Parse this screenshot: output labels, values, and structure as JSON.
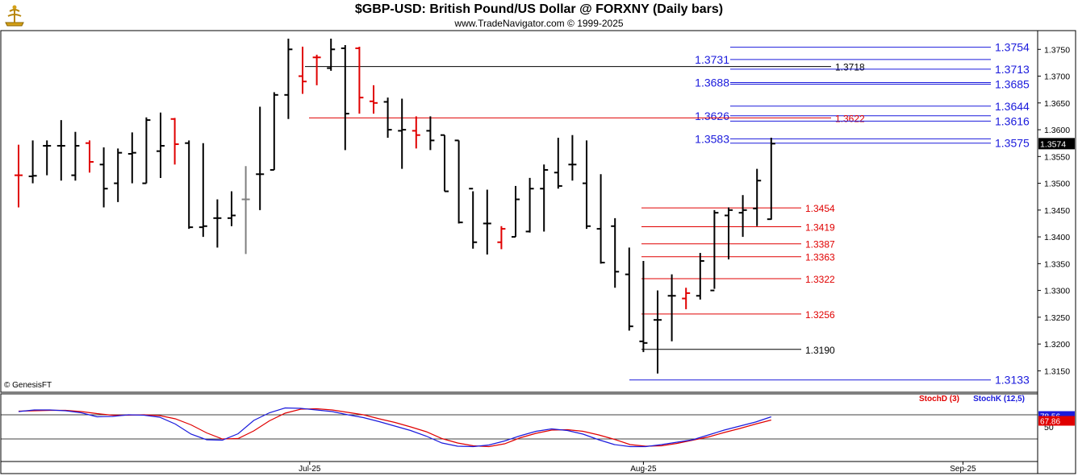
{
  "header": {
    "title": "$GBP-USD:  British Pound/US Dollar @ FORXNY  (Daily bars)",
    "subtitle": "www.TradeNavigator.com © 1999-2025",
    "copyright": "© GenesisFT"
  },
  "colors": {
    "up_bar": "#000000",
    "down_bar": "#e00000",
    "neutral_bar": "#808080",
    "blue_level": "#1a1adc",
    "red_level": "#e00000",
    "black_level": "#000000",
    "stoch_d": "#e00000",
    "stoch_k": "#1a1adc"
  },
  "chart_data": [
    {
      "type": "ohlc",
      "title": "$GBP-USD:  British Pound/US Dollar @ FORXNY  (Daily bars)",
      "ylim": [
        1.311,
        1.3785
      ],
      "y_ticks": [
        "1.3750",
        "1.3700",
        "1.3650",
        "1.3600",
        "1.3550",
        "1.3500",
        "1.3450",
        "1.3400",
        "1.3350",
        "1.3300",
        "1.3250",
        "1.3200",
        "1.3150"
      ],
      "x_ticks": [
        "Jul-25",
        "Aug-25",
        "Sep-25"
      ],
      "last_price": "1.3574",
      "bars": [
        {
          "o": 1.3515,
          "h": 1.3572,
          "l": 1.3455,
          "c": 1.3515,
          "col": "down"
        },
        {
          "o": 1.3513,
          "h": 1.358,
          "l": 1.35,
          "c": 1.3514,
          "col": "up"
        },
        {
          "o": 1.357,
          "h": 1.358,
          "l": 1.3515,
          "c": 1.357,
          "col": "up"
        },
        {
          "o": 1.357,
          "h": 1.3618,
          "l": 1.3505,
          "c": 1.357,
          "col": "up"
        },
        {
          "o": 1.3515,
          "h": 1.3596,
          "l": 1.3505,
          "c": 1.357,
          "col": "up"
        },
        {
          "o": 1.3575,
          "h": 1.358,
          "l": 1.352,
          "c": 1.354,
          "col": "down"
        },
        {
          "o": 1.3535,
          "h": 1.3567,
          "l": 1.3455,
          "c": 1.349,
          "col": "up"
        },
        {
          "o": 1.35,
          "h": 1.3565,
          "l": 1.3465,
          "c": 1.3557,
          "col": "up"
        },
        {
          "o": 1.3555,
          "h": 1.3595,
          "l": 1.35,
          "c": 1.3557,
          "col": "up"
        },
        {
          "o": 1.35,
          "h": 1.3623,
          "l": 1.35,
          "c": 1.3618,
          "col": "up"
        },
        {
          "o": 1.356,
          "h": 1.3632,
          "l": 1.351,
          "c": 1.357,
          "col": "up"
        },
        {
          "o": 1.362,
          "h": 1.3622,
          "l": 1.3535,
          "c": 1.3573,
          "col": "down"
        },
        {
          "o": 1.3575,
          "h": 1.358,
          "l": 1.3415,
          "c": 1.3418,
          "col": "up"
        },
        {
          "o": 1.3418,
          "h": 1.3575,
          "l": 1.34,
          "c": 1.342,
          "col": "up"
        },
        {
          "o": 1.3435,
          "h": 1.347,
          "l": 1.338,
          "c": 1.3435,
          "col": "up"
        },
        {
          "o": 1.3435,
          "h": 1.3485,
          "l": 1.342,
          "c": 1.344,
          "col": "up"
        },
        {
          "o": 1.347,
          "h": 1.3532,
          "l": 1.3368,
          "c": 1.347,
          "col": "neutral"
        },
        {
          "o": 1.3517,
          "h": 1.3643,
          "l": 1.345,
          "c": 1.3517,
          "col": "up"
        },
        {
          "o": 1.3525,
          "h": 1.367,
          "l": 1.3525,
          "c": 1.3665,
          "col": "up"
        },
        {
          "o": 1.3665,
          "h": 1.377,
          "l": 1.362,
          "c": 1.375,
          "col": "up"
        },
        {
          "o": 1.37,
          "h": 1.3755,
          "l": 1.3667,
          "c": 1.369,
          "col": "down"
        },
        {
          "o": 1.3735,
          "h": 1.374,
          "l": 1.3683,
          "c": 1.3735,
          "col": "down"
        },
        {
          "o": 1.3715,
          "h": 1.377,
          "l": 1.371,
          "c": 1.375,
          "col": "up"
        },
        {
          "o": 1.3752,
          "h": 1.3758,
          "l": 1.3562,
          "c": 1.363,
          "col": "up"
        },
        {
          "o": 1.3752,
          "h": 1.3755,
          "l": 1.363,
          "c": 1.366,
          "col": "down"
        },
        {
          "o": 1.3653,
          "h": 1.3683,
          "l": 1.363,
          "c": 1.365,
          "col": "down"
        },
        {
          "o": 1.3652,
          "h": 1.366,
          "l": 1.3585,
          "c": 1.36,
          "col": "up"
        },
        {
          "o": 1.3598,
          "h": 1.3658,
          "l": 1.3527,
          "c": 1.36,
          "col": "up"
        },
        {
          "o": 1.3598,
          "h": 1.3625,
          "l": 1.3565,
          "c": 1.359,
          "col": "down"
        },
        {
          "o": 1.3598,
          "h": 1.3625,
          "l": 1.3562,
          "c": 1.358,
          "col": "up"
        },
        {
          "o": 1.359,
          "h": 1.359,
          "l": 1.3485,
          "c": 1.3485,
          "col": "up"
        },
        {
          "o": 1.358,
          "h": 1.358,
          "l": 1.3425,
          "c": 1.3427,
          "col": "up"
        },
        {
          "o": 1.349,
          "h": 1.3485,
          "l": 1.3378,
          "c": 1.339,
          "col": "up"
        },
        {
          "o": 1.3425,
          "h": 1.3488,
          "l": 1.3367,
          "c": 1.3425,
          "col": "up"
        },
        {
          "o": 1.339,
          "h": 1.342,
          "l": 1.3377,
          "c": 1.3415,
          "col": "down"
        },
        {
          "o": 1.34,
          "h": 1.3495,
          "l": 1.34,
          "c": 1.347,
          "col": "up"
        },
        {
          "o": 1.341,
          "h": 1.351,
          "l": 1.3408,
          "c": 1.349,
          "col": "up"
        },
        {
          "o": 1.349,
          "h": 1.3535,
          "l": 1.341,
          "c": 1.3525,
          "col": "up"
        },
        {
          "o": 1.352,
          "h": 1.3585,
          "l": 1.349,
          "c": 1.3495,
          "col": "up"
        },
        {
          "o": 1.3535,
          "h": 1.359,
          "l": 1.3505,
          "c": 1.3535,
          "col": "up"
        },
        {
          "o": 1.35,
          "h": 1.358,
          "l": 1.3415,
          "c": 1.342,
          "col": "up"
        },
        {
          "o": 1.3415,
          "h": 1.3517,
          "l": 1.335,
          "c": 1.3352,
          "col": "up"
        },
        {
          "o": 1.342,
          "h": 1.3435,
          "l": 1.3305,
          "c": 1.3335,
          "col": "up"
        },
        {
          "o": 1.333,
          "h": 1.338,
          "l": 1.3225,
          "c": 1.3233,
          "col": "up"
        },
        {
          "o": 1.3205,
          "h": 1.3355,
          "l": 1.3185,
          "c": 1.3202,
          "col": "up"
        },
        {
          "o": 1.3245,
          "h": 1.33,
          "l": 1.3145,
          "c": 1.3245,
          "col": "up"
        },
        {
          "o": 1.329,
          "h": 1.333,
          "l": 1.3205,
          "c": 1.329,
          "col": "up"
        },
        {
          "o": 1.3285,
          "h": 1.3305,
          "l": 1.3265,
          "c": 1.3295,
          "col": "down"
        },
        {
          "o": 1.329,
          "h": 1.337,
          "l": 1.3283,
          "c": 1.3355,
          "col": "up"
        },
        {
          "o": 1.33,
          "h": 1.345,
          "l": 1.3303,
          "c": 1.3445,
          "col": "up"
        },
        {
          "o": 1.344,
          "h": 1.3455,
          "l": 1.3358,
          "c": 1.345,
          "col": "up"
        },
        {
          "o": 1.3445,
          "h": 1.3478,
          "l": 1.34,
          "c": 1.345,
          "col": "up"
        },
        {
          "o": 1.3453,
          "h": 1.3527,
          "l": 1.342,
          "c": 1.3505,
          "col": "up"
        },
        {
          "o": 1.3433,
          "h": 1.3585,
          "l": 1.3432,
          "c": 1.3574,
          "col": "up"
        }
      ],
      "levels": [
        {
          "label": "1.3754",
          "value": 1.3754,
          "color": "blue",
          "side": "right"
        },
        {
          "label": "1.3731",
          "value": 1.3731,
          "color": "blue",
          "side": "left"
        },
        {
          "label": "1.3718",
          "value": 1.3718,
          "color": "black",
          "side": "mid"
        },
        {
          "label": "1.3713",
          "value": 1.3713,
          "color": "blue",
          "side": "right"
        },
        {
          "label": "1.3688",
          "value": 1.3688,
          "color": "blue",
          "side": "left"
        },
        {
          "label": "1.3685",
          "value": 1.3685,
          "color": "blue",
          "side": "right"
        },
        {
          "label": "1.3644",
          "value": 1.3644,
          "color": "blue",
          "side": "right"
        },
        {
          "label": "1.3626",
          "value": 1.3626,
          "color": "blue",
          "side": "left"
        },
        {
          "label": "1.3622",
          "value": 1.3622,
          "color": "red",
          "side": "mid"
        },
        {
          "label": "1.3616",
          "value": 1.3616,
          "color": "blue",
          "side": "right"
        },
        {
          "label": "1.3583",
          "value": 1.3583,
          "color": "blue",
          "side": "left"
        },
        {
          "label": "1.3575",
          "value": 1.3575,
          "color": "blue",
          "side": "right"
        },
        {
          "label": "1.3454",
          "value": 1.3454,
          "color": "red",
          "side": "low"
        },
        {
          "label": "1.3419",
          "value": 1.3419,
          "color": "red",
          "side": "low"
        },
        {
          "label": "1.3387",
          "value": 1.3387,
          "color": "red",
          "side": "low"
        },
        {
          "label": "1.3363",
          "value": 1.3363,
          "color": "red",
          "side": "low"
        },
        {
          "label": "1.3322",
          "value": 1.3322,
          "color": "red",
          "side": "low"
        },
        {
          "label": "1.3256",
          "value": 1.3256,
          "color": "red",
          "side": "low"
        },
        {
          "label": "1.3190",
          "value": 1.319,
          "color": "black",
          "side": "low"
        },
        {
          "label": "1.3133",
          "value": 1.3133,
          "color": "blue",
          "side": "right"
        }
      ]
    },
    {
      "type": "line",
      "series": [
        {
          "name": "StochD (3)",
          "color": "red",
          "values": [
            89,
            90,
            91,
            91,
            88,
            83,
            79,
            79,
            80,
            78,
            70,
            55,
            35,
            20,
            21,
            40,
            65,
            84,
            94,
            95,
            92,
            86,
            80,
            70,
            61,
            50,
            38,
            21,
            10,
            3,
            1,
            8,
            23,
            34,
            42,
            43,
            39,
            30,
            19,
            6,
            2,
            3,
            9,
            17,
            25,
            36,
            46,
            57,
            67
          ]
        },
        {
          "name": "StochK (12,5)",
          "color": "blue",
          "values": [
            88,
            92,
            92,
            90,
            85,
            75,
            76,
            80,
            79,
            74,
            57,
            32,
            18,
            17,
            33,
            66,
            85,
            97,
            96,
            92,
            88,
            80,
            73,
            63,
            52,
            41,
            27,
            10,
            2,
            1,
            5,
            15,
            28,
            39,
            45,
            41,
            32,
            18,
            6,
            1,
            1,
            6,
            12,
            18,
            30,
            42,
            52,
            62,
            75
          ]
        }
      ],
      "legend": [
        "StochD (3)",
        "StochK (12,5)"
      ],
      "ylim": [
        0,
        100
      ],
      "y_ticks": [
        "50"
      ],
      "last_values": [
        "78.56",
        "67.86"
      ]
    }
  ]
}
